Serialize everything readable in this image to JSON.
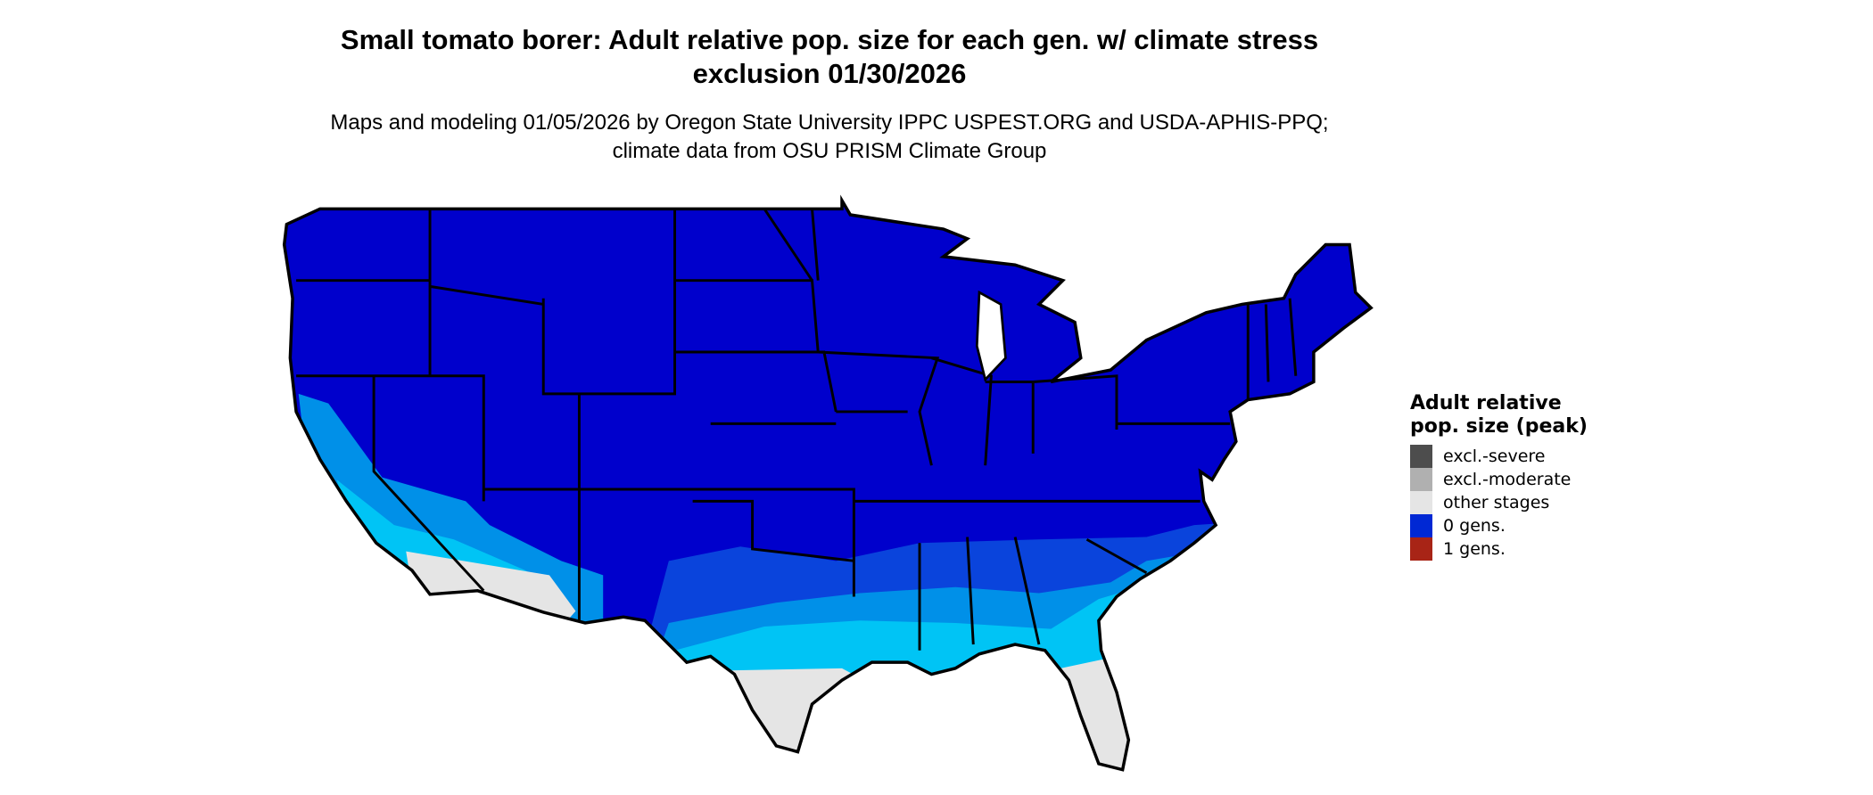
{
  "title": "Small tomato borer: Adult relative pop. size for each gen. w/ climate stress exclusion 01/30/2026",
  "subtitle": "Maps and modeling 01/05/2026 by Oregon State University IPPC USPEST.ORG and USDA-APHIS-PPQ; climate data from OSU PRISM Climate Group",
  "map": {
    "region": "Contiguous United States",
    "colors": {
      "base": "#0000cc",
      "band_mid": "#0a44dc",
      "band_light": "#0090e8",
      "band_cyan": "#00c4f5",
      "other_stages": "#e5e5e5",
      "border": "#000000"
    }
  },
  "legend": {
    "title": "Adult relative pop. size (peak)",
    "items": [
      {
        "label": "excl.-severe",
        "color": "#4d4d4d"
      },
      {
        "label": "excl.-moderate",
        "color": "#b0b0b0"
      },
      {
        "label": "other stages",
        "color": "#e5e5e5"
      },
      {
        "label": "0 gens.",
        "color": "#0028d4"
      },
      {
        "label": "1 gens.",
        "color": "#a82416"
      }
    ]
  }
}
